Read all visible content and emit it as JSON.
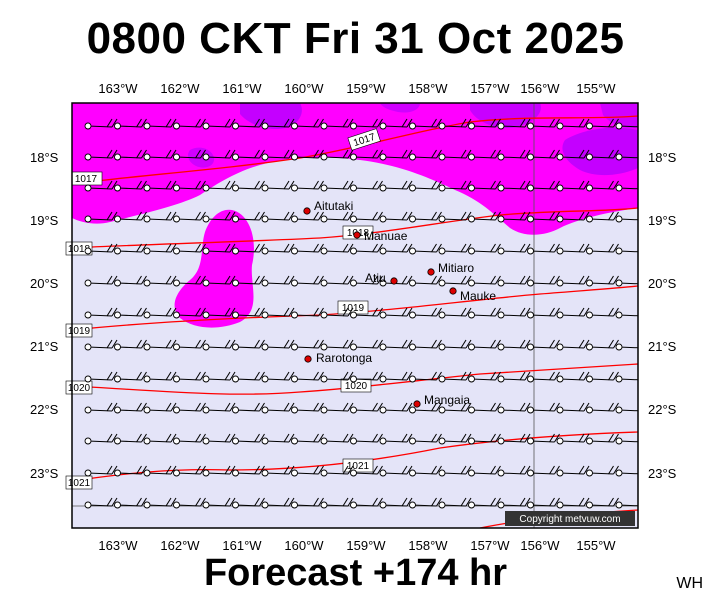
{
  "title": "0800 CKT Fri 31 Oct 2025",
  "footer": "Forecast +174 hr",
  "initials": "WH",
  "copyright": "Copyright metvuw.com",
  "lon_labels": [
    "163°W",
    "162°W",
    "161°W",
    "160°W",
    "159°W",
    "158°W",
    "157°W",
    "156°W",
    "155°W"
  ],
  "lat_labels": [
    "18°S",
    "19°S",
    "20°S",
    "21°S",
    "22°S",
    "23°S"
  ],
  "isobar_labels": [
    "1017",
    "1017",
    "1018",
    "1018",
    "1019",
    "1019",
    "1020",
    "1020",
    "1021",
    "1021"
  ],
  "places": [
    {
      "name": "Aitutaki",
      "marker": true
    },
    {
      "name": "Manuae",
      "marker": true
    },
    {
      "name": "Mitiaro",
      "marker": true
    },
    {
      "name": "Atiu",
      "marker": true
    },
    {
      "name": "Mauke",
      "marker": true
    },
    {
      "name": "Rarotonga",
      "marker": true
    },
    {
      "name": "Mangaia",
      "marker": true
    }
  ],
  "colors": {
    "background_field": "#e4e4f8",
    "precip_magenta": "#ff00ff",
    "precip_purple": "#b000ff",
    "isobar": "#ff0000",
    "marker": "#dd0000"
  }
}
